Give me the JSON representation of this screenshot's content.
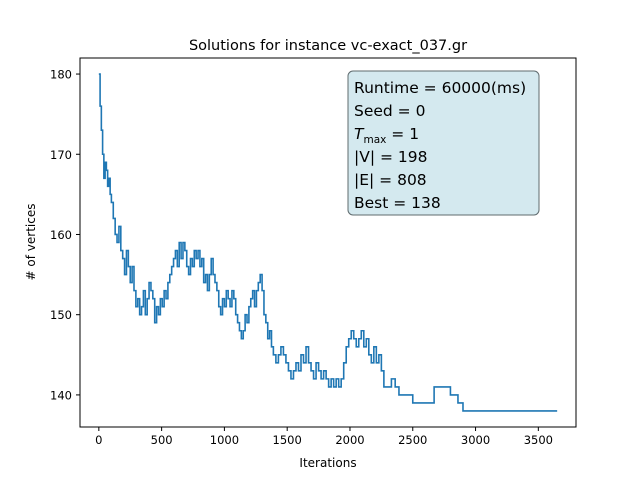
{
  "chart_data": {
    "type": "line",
    "title": "Solutions for instance vc-exact_037.gr",
    "xlabel": "Iterations",
    "ylabel": "# of vertices",
    "xlim": [
      -150,
      3800
    ],
    "ylim": [
      136,
      182
    ],
    "xticks": [
      0,
      500,
      1000,
      1500,
      2000,
      2500,
      3000,
      3500
    ],
    "yticks": [
      140,
      150,
      160,
      170,
      180
    ],
    "grid": false,
    "line_color": "#1f77b4",
    "series": [
      {
        "points": [
          [
            0,
            180
          ],
          [
            10,
            176
          ],
          [
            20,
            173
          ],
          [
            30,
            170
          ],
          [
            40,
            167
          ],
          [
            50,
            169
          ],
          [
            60,
            168
          ],
          [
            70,
            166
          ],
          [
            80,
            167
          ],
          [
            90,
            165
          ],
          [
            100,
            164
          ],
          [
            115,
            162
          ],
          [
            130,
            160
          ],
          [
            145,
            159
          ],
          [
            160,
            161
          ],
          [
            175,
            158
          ],
          [
            190,
            157
          ],
          [
            205,
            155
          ],
          [
            220,
            158
          ],
          [
            235,
            156
          ],
          [
            250,
            154
          ],
          [
            265,
            156
          ],
          [
            280,
            153
          ],
          [
            295,
            151
          ],
          [
            310,
            152
          ],
          [
            325,
            150
          ],
          [
            340,
            151
          ],
          [
            355,
            153
          ],
          [
            370,
            150
          ],
          [
            385,
            152
          ],
          [
            400,
            154
          ],
          [
            415,
            153
          ],
          [
            430,
            152
          ],
          [
            445,
            149
          ],
          [
            460,
            151
          ],
          [
            475,
            150
          ],
          [
            490,
            152
          ],
          [
            505,
            151
          ],
          [
            520,
            153
          ],
          [
            535,
            152
          ],
          [
            550,
            154
          ],
          [
            565,
            155
          ],
          [
            580,
            156
          ],
          [
            595,
            157
          ],
          [
            610,
            158
          ],
          [
            625,
            156
          ],
          [
            640,
            159
          ],
          [
            655,
            157
          ],
          [
            670,
            159
          ],
          [
            685,
            158
          ],
          [
            700,
            156
          ],
          [
            715,
            155
          ],
          [
            730,
            157
          ],
          [
            745,
            156
          ],
          [
            760,
            158
          ],
          [
            775,
            157
          ],
          [
            790,
            158
          ],
          [
            805,
            156
          ],
          [
            820,
            157
          ],
          [
            835,
            154
          ],
          [
            850,
            155
          ],
          [
            865,
            153
          ],
          [
            880,
            155
          ],
          [
            895,
            157
          ],
          [
            910,
            155
          ],
          [
            925,
            154
          ],
          [
            940,
            153
          ],
          [
            955,
            151
          ],
          [
            970,
            150
          ],
          [
            985,
            152
          ],
          [
            1000,
            151
          ],
          [
            1015,
            153
          ],
          [
            1030,
            152
          ],
          [
            1045,
            151
          ],
          [
            1060,
            153
          ],
          [
            1075,
            152
          ],
          [
            1090,
            150
          ],
          [
            1105,
            149
          ],
          [
            1120,
            148
          ],
          [
            1135,
            147
          ],
          [
            1150,
            148
          ],
          [
            1165,
            150
          ],
          [
            1180,
            149
          ],
          [
            1195,
            151
          ],
          [
            1210,
            152
          ],
          [
            1225,
            153
          ],
          [
            1240,
            151
          ],
          [
            1255,
            153
          ],
          [
            1270,
            154
          ],
          [
            1285,
            155
          ],
          [
            1300,
            153
          ],
          [
            1315,
            150
          ],
          [
            1330,
            149
          ],
          [
            1345,
            147
          ],
          [
            1360,
            148
          ],
          [
            1375,
            146
          ],
          [
            1390,
            145
          ],
          [
            1410,
            144
          ],
          [
            1430,
            145
          ],
          [
            1450,
            146
          ],
          [
            1470,
            145
          ],
          [
            1490,
            144
          ],
          [
            1510,
            143
          ],
          [
            1530,
            142
          ],
          [
            1550,
            143
          ],
          [
            1570,
            144
          ],
          [
            1590,
            143
          ],
          [
            1610,
            145
          ],
          [
            1630,
            144
          ],
          [
            1650,
            146
          ],
          [
            1670,
            144
          ],
          [
            1690,
            143
          ],
          [
            1710,
            142
          ],
          [
            1730,
            144
          ],
          [
            1750,
            143
          ],
          [
            1770,
            142
          ],
          [
            1790,
            143
          ],
          [
            1810,
            142
          ],
          [
            1830,
            141
          ],
          [
            1850,
            142
          ],
          [
            1870,
            141
          ],
          [
            1890,
            142
          ],
          [
            1910,
            141
          ],
          [
            1930,
            142
          ],
          [
            1950,
            144
          ],
          [
            1970,
            146
          ],
          [
            1990,
            147
          ],
          [
            2010,
            148
          ],
          [
            2030,
            147
          ],
          [
            2050,
            146
          ],
          [
            2070,
            147
          ],
          [
            2090,
            148
          ],
          [
            2110,
            146
          ],
          [
            2130,
            147
          ],
          [
            2150,
            145
          ],
          [
            2170,
            144
          ],
          [
            2190,
            146
          ],
          [
            2210,
            144
          ],
          [
            2230,
            145
          ],
          [
            2250,
            143
          ],
          [
            2270,
            141
          ],
          [
            2300,
            141
          ],
          [
            2330,
            142
          ],
          [
            2360,
            141
          ],
          [
            2390,
            140
          ],
          [
            2430,
            140
          ],
          [
            2460,
            140
          ],
          [
            2480,
            140
          ],
          [
            2500,
            139
          ],
          [
            2550,
            139
          ],
          [
            2600,
            139
          ],
          [
            2630,
            139
          ],
          [
            2650,
            139
          ],
          [
            2670,
            141
          ],
          [
            2700,
            141
          ],
          [
            2750,
            141
          ],
          [
            2790,
            141
          ],
          [
            2800,
            140
          ],
          [
            2850,
            140
          ],
          [
            2860,
            139
          ],
          [
            2880,
            139
          ],
          [
            2900,
            138
          ],
          [
            3000,
            138
          ],
          [
            3200,
            138
          ],
          [
            3400,
            138
          ],
          [
            3600,
            138
          ],
          [
            3650,
            138
          ]
        ]
      }
    ],
    "annotation": {
      "lines": [
        {
          "text": "Runtime = 60000(ms)"
        },
        {
          "text": "Seed = 0"
        },
        {
          "prefix": "T",
          "sub": "max",
          "text": " = 1"
        },
        {
          "text": "|V| = 198"
        },
        {
          "text": "|E| = 808"
        },
        {
          "text": "Best = 138"
        }
      ],
      "background": "#d4e9ef",
      "border": "#5f6b6e",
      "placement": "top-right"
    }
  }
}
